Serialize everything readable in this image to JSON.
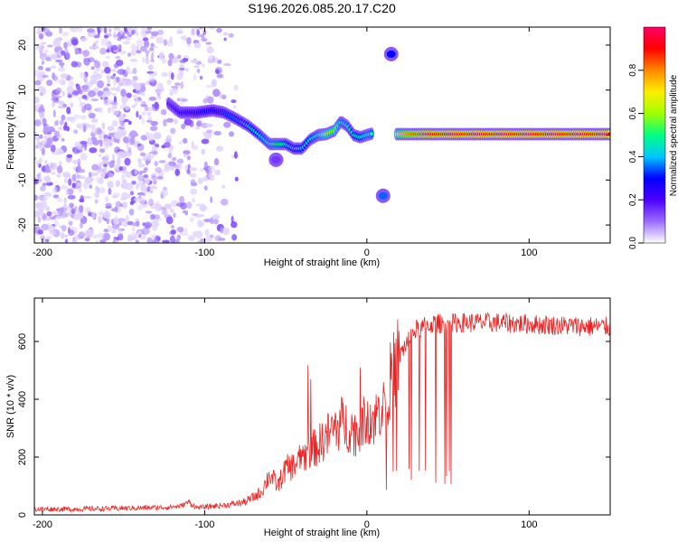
{
  "chart_data": [
    {
      "type": "heatmap",
      "title": "S196.2026.085.20.17.C20",
      "xlabel": "Height of straight line (km)",
      "ylabel": "Frequency (Hz)",
      "xlim": [
        -205,
        150
      ],
      "ylim": [
        -24,
        24
      ],
      "x_ticks": [
        -200,
        -100,
        0,
        100
      ],
      "y_ticks": [
        -20,
        -10,
        0,
        10,
        20
      ],
      "colorbar": {
        "label": "Normalized spectral amplitude",
        "range": [
          0,
          1
        ],
        "ticks": [
          "0.0",
          "0.2",
          "0.4",
          "0.6",
          "0.8"
        ],
        "tick_values": [
          0,
          0.2,
          0.4,
          0.6,
          0.8
        ],
        "colormap": [
          "#ffffff",
          "#9a6cff",
          "#4c00ff",
          "#0000ff",
          "#00c8ff",
          "#00ff80",
          "#a0ff00",
          "#ffee00",
          "#ff8800",
          "#ff0000",
          "#ff0066"
        ]
      },
      "ridge": {
        "x": [
          -122,
          -115,
          -105,
          -95,
          -88,
          -80,
          -73,
          -66,
          -60,
          -55,
          -50,
          -45,
          -40,
          -35,
          -30,
          -25,
          -20,
          -16,
          -12,
          -8,
          -4,
          0,
          3,
          18,
          25,
          32,
          40,
          60,
          80,
          90,
          100,
          112,
          125,
          150
        ],
        "freq_hz": [
          7,
          5,
          5,
          5.5,
          5,
          3.5,
          2,
          0,
          -2,
          -2,
          -2,
          -3,
          -3,
          -1,
          0,
          0.2,
          1,
          3,
          2,
          0,
          -0.5,
          0,
          0.3,
          0.2,
          0.2,
          0.2,
          0.2,
          0.2,
          0.2,
          0.2,
          0.2,
          0.2,
          0.2,
          0.2
        ],
        "amplitude": [
          0.2,
          0.25,
          0.28,
          0.3,
          0.32,
          0.35,
          0.4,
          0.45,
          0.5,
          0.5,
          0.45,
          0.4,
          0.4,
          0.45,
          0.5,
          0.6,
          0.6,
          0.5,
          0.5,
          0.45,
          0.45,
          0.5,
          0.5,
          0.7,
          0.8,
          0.85,
          0.9,
          0.95,
          0.95,
          0.95,
          0.95,
          0.95,
          0.95,
          0.95
        ]
      },
      "features": [
        {
          "x": 15,
          "freq_hz": 18,
          "amplitude": 0.3
        },
        {
          "x": 10,
          "freq_hz": -13.5,
          "amplitude": 0.35
        },
        {
          "x": -56,
          "freq_hz": -5.5,
          "amplitude": 0.15
        }
      ]
    },
    {
      "type": "line",
      "xlabel": "Height of straight line (km)",
      "ylabel": "SNR (10 * v/v)",
      "xlim": [
        -205,
        150
      ],
      "ylim": [
        0,
        750
      ],
      "x_ticks": [
        -200,
        -100,
        0,
        100
      ],
      "y_ticks": [
        0,
        200,
        400,
        600
      ],
      "series": [
        {
          "name": "SNR",
          "color": "#ee2222",
          "x": [
            -205,
            -180,
            -160,
            -140,
            -125,
            -115,
            -110,
            -105,
            -95,
            -85,
            -75,
            -70,
            -65,
            -60,
            -55,
            -50,
            -45,
            -40,
            -35,
            -30,
            -25,
            -20,
            -15,
            -10,
            -5,
            0,
            5,
            10,
            15,
            20,
            25,
            30,
            40,
            60,
            80,
            100,
            120,
            150
          ],
          "y": [
            20,
            20,
            22,
            24,
            26,
            30,
            45,
            25,
            30,
            35,
            45,
            60,
            80,
            140,
            100,
            160,
            170,
            200,
            220,
            240,
            270,
            300,
            320,
            300,
            280,
            350,
            330,
            400,
            470,
            550,
            600,
            640,
            660,
            665,
            665,
            660,
            655,
            650
          ]
        }
      ]
    }
  ]
}
